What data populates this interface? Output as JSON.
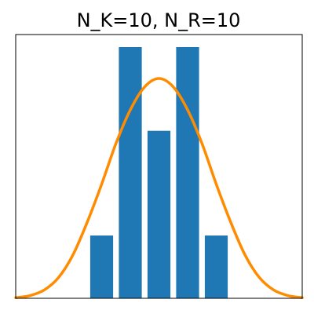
{
  "chart_data": {
    "type": "bar",
    "title": "N_K=10, N_R=10",
    "xlabel": "",
    "ylabel": "",
    "x": [
      -2,
      -1,
      0,
      1,
      2
    ],
    "values": [
      3,
      12,
      8,
      12,
      3
    ],
    "xlim": [
      -5,
      5
    ],
    "ylim": [
      0,
      12.6
    ],
    "axis_ticks_visible": false,
    "grid": false,
    "series": [
      {
        "type": "bar",
        "values": [
          3,
          12,
          8,
          12,
          3
        ],
        "color": "#1f77b4"
      },
      {
        "type": "line",
        "x": [
          -5,
          -4.5,
          -4,
          -3.5,
          -3,
          -2.5,
          -2,
          -1.5,
          -1,
          -0.5,
          0,
          0.5,
          1,
          1.5,
          2,
          2.5,
          3,
          3.5,
          4,
          4.5,
          5
        ],
        "values": [
          0.03,
          0.13,
          0.4,
          1.0,
          2.08,
          3.65,
          5.45,
          7.4,
          9.0,
          10.1,
          10.5,
          10.1,
          9.0,
          7.4,
          5.45,
          3.65,
          2.08,
          1.0,
          0.4,
          0.13,
          0.03
        ],
        "color": "#ff8c00"
      }
    ]
  }
}
